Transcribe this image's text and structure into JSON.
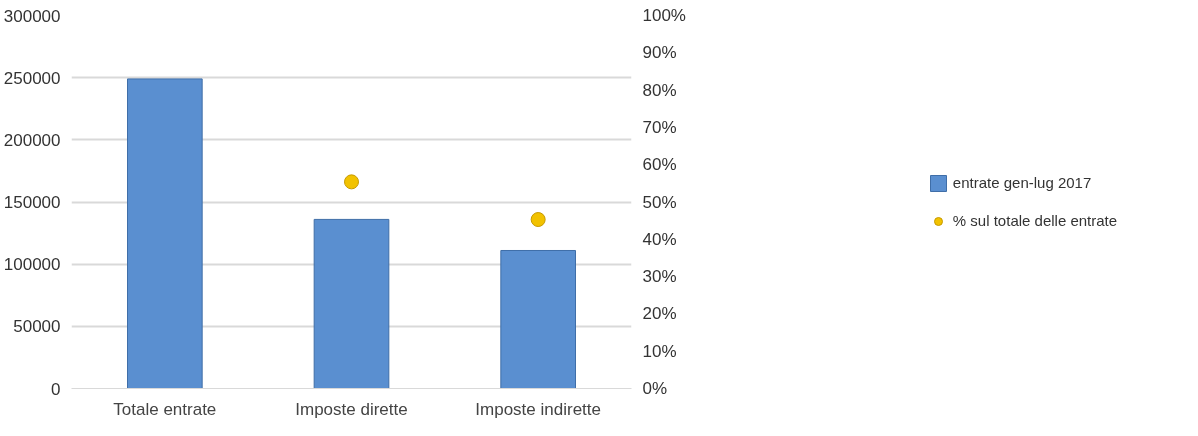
{
  "chart_data": {
    "type": "bar",
    "categories": [
      "Totale entrate",
      "Imposte dirette",
      "Imposte indirette"
    ],
    "series": [
      {
        "name": "entrate gen-lug 2017",
        "color": "#5a8fd0",
        "values": [
          249000,
          136000,
          111000
        ]
      },
      {
        "name": "% sul totale delle entrate",
        "type": "scatter",
        "axis": "y2",
        "marker": "circle",
        "color": "#f2c200",
        "values": [
          null,
          55.4,
          45.3
        ]
      }
    ],
    "ylim": [
      0,
      300000
    ],
    "yticks": [
      0,
      50000,
      100000,
      150000,
      200000,
      250000,
      300000
    ],
    "y2lim": [
      0,
      100
    ],
    "y2ticks": [
      {
        "value": 0,
        "label": "0%"
      },
      {
        "value": 10,
        "label": "10%"
      },
      {
        "value": 20,
        "label": "20%"
      },
      {
        "value": 30,
        "label": "30%"
      },
      {
        "value": 40,
        "label": "40%"
      },
      {
        "value": 50,
        "label": "50%"
      },
      {
        "value": 60,
        "label": "60%"
      },
      {
        "value": 70,
        "label": "70%"
      },
      {
        "value": 80,
        "label": "80%"
      },
      {
        "value": 90,
        "label": "90%"
      },
      {
        "value": 100,
        "label": "100%"
      }
    ],
    "grid": "y",
    "legend": "right"
  }
}
